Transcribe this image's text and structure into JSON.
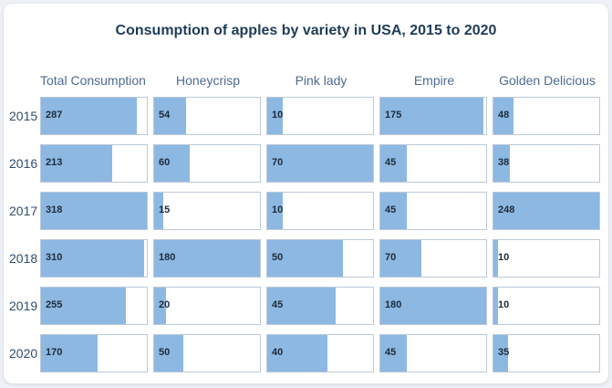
{
  "chart_data": {
    "type": "table",
    "title": "Consumption of apples by variety in USA, 2015 to 2020",
    "columns": [
      "Total Consumption",
      "Honeycrisp",
      "Pink lady",
      "Empire",
      "Golden Delicious"
    ],
    "rows": [
      {
        "year": "2015",
        "values": [
          287,
          54,
          10,
          175,
          48
        ]
      },
      {
        "year": "2016",
        "values": [
          213,
          60,
          70,
          45,
          38
        ]
      },
      {
        "year": "2017",
        "values": [
          318,
          15,
          10,
          45,
          248
        ]
      },
      {
        "year": "2018",
        "values": [
          310,
          180,
          50,
          70,
          10
        ]
      },
      {
        "year": "2019",
        "values": [
          255,
          20,
          45,
          180,
          10
        ]
      },
      {
        "year": "2020",
        "values": [
          170,
          50,
          40,
          45,
          35
        ]
      }
    ],
    "column_max": [
      318,
      180,
      70,
      180,
      248
    ],
    "colors": {
      "bar": "#8db8e2",
      "cell_border": "#bcc9d8",
      "title": "#1f3b57",
      "header": "#4d6a8f"
    }
  }
}
